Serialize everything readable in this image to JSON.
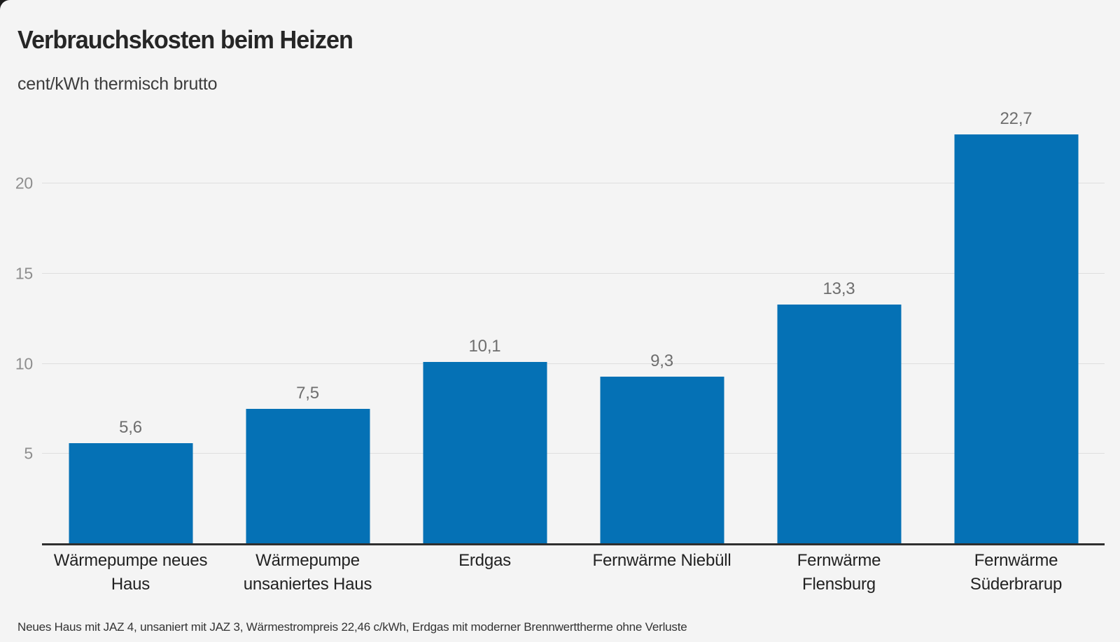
{
  "chart_data": {
    "type": "bar",
    "title": "Verbrauchskosten beim Heizen",
    "subtitle": "cent/kWh thermisch brutto",
    "unit": "cent/kWh thermisch brutto",
    "categories": [
      "Wärmepumpe neues Haus",
      "Wärmepumpe unsaniertes Haus",
      "Erdgas",
      "Fernwärme Niebüll",
      "Fernwärme Flensburg",
      "Fernwärme Süderbrarup"
    ],
    "category_lines": [
      [
        "Wärmepumpe neues",
        "Haus"
      ],
      [
        "Wärmepumpe",
        "unsaniertes Haus"
      ],
      [
        "Erdgas"
      ],
      [
        "Fernwärme Niebüll"
      ],
      [
        "Fernwärme",
        "Flensburg"
      ],
      [
        "Fernwärme",
        "Süderbrarup"
      ]
    ],
    "values": [
      5.6,
      7.5,
      10.1,
      9.3,
      13.3,
      22.7
    ],
    "value_labels": [
      "5,6",
      "7,5",
      "10,1",
      "9,3",
      "13,3",
      "22,7"
    ],
    "yticks": [
      5,
      10,
      15,
      20
    ],
    "ytick_labels": [
      "5",
      "10",
      "15",
      "20"
    ],
    "ylim": [
      0,
      23.6
    ],
    "grid": "horizontal",
    "legend": "none",
    "bar_color": "#0571b5",
    "background_color": "#f4f4f4",
    "footnote": "Neues Haus mit JAZ 4, unsaniert mit JAZ 3, Wärmestrompreis 22,46 c/kWh, Erdgas mit moderner Brennwerttherme ohne Verluste"
  }
}
